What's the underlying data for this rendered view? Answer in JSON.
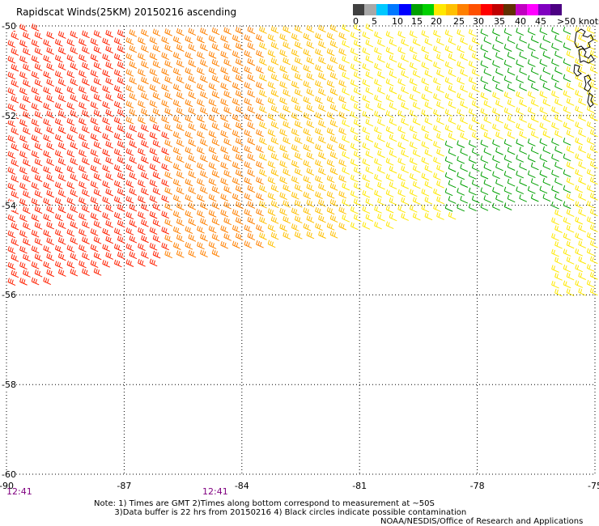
{
  "title": "Rapidscat Winds(25KM) 20150216 ascending",
  "legend": {
    "colors": [
      "#404040",
      "#a8a8a8",
      "#00c8ff",
      "#0078ff",
      "#0000ff",
      "#00a000",
      "#00d000",
      "#ffe800",
      "#ffc000",
      "#ff8000",
      "#ff5000",
      "#ff0000",
      "#c00000",
      "#603000",
      "#c000c0",
      "#ff00ff",
      "#8000c0",
      "#4b0082"
    ],
    "labels": [
      "0",
      "5",
      "10",
      "15",
      "20",
      "25",
      "30",
      "35",
      "40",
      "45",
      ">50 knots"
    ]
  },
  "map": {
    "longitude_labels": [
      "-90",
      "-87",
      "-84",
      "-81",
      "-78",
      "-75"
    ],
    "latitude_labels": [
      "-50",
      "-52",
      "-54",
      "-56",
      "-58",
      "-60"
    ],
    "lon_range": [
      -90,
      -75
    ],
    "lat_range": [
      -60,
      -50
    ],
    "grid": "dotted every 3° lon / 2° lat",
    "time_labels": [
      "12:41",
      "12:41"
    ],
    "wind_speed_zones": [
      {
        "region": "west",
        "speed_knots": 30,
        "color": "#ff2000"
      },
      {
        "region": "central-west",
        "speed_knots": 25,
        "color": "#ff8000"
      },
      {
        "region": "central",
        "speed_knots": 20,
        "color": "#ffc000"
      },
      {
        "region": "east",
        "speed_knots": 17,
        "color": "#ffe800"
      },
      {
        "region": "east-patch",
        "speed_knots": 12,
        "color": "#00a000"
      }
    ]
  },
  "footer": {
    "note": "Note: 1) Times are GMT 2)Times along bottom correspond to measurement at ~50S\n        3)Data buffer is 22 hrs from 20150216 4) Black circles indicate possible contamination",
    "credit": "NOAA/NESDIS/Office of Research and Applications"
  }
}
